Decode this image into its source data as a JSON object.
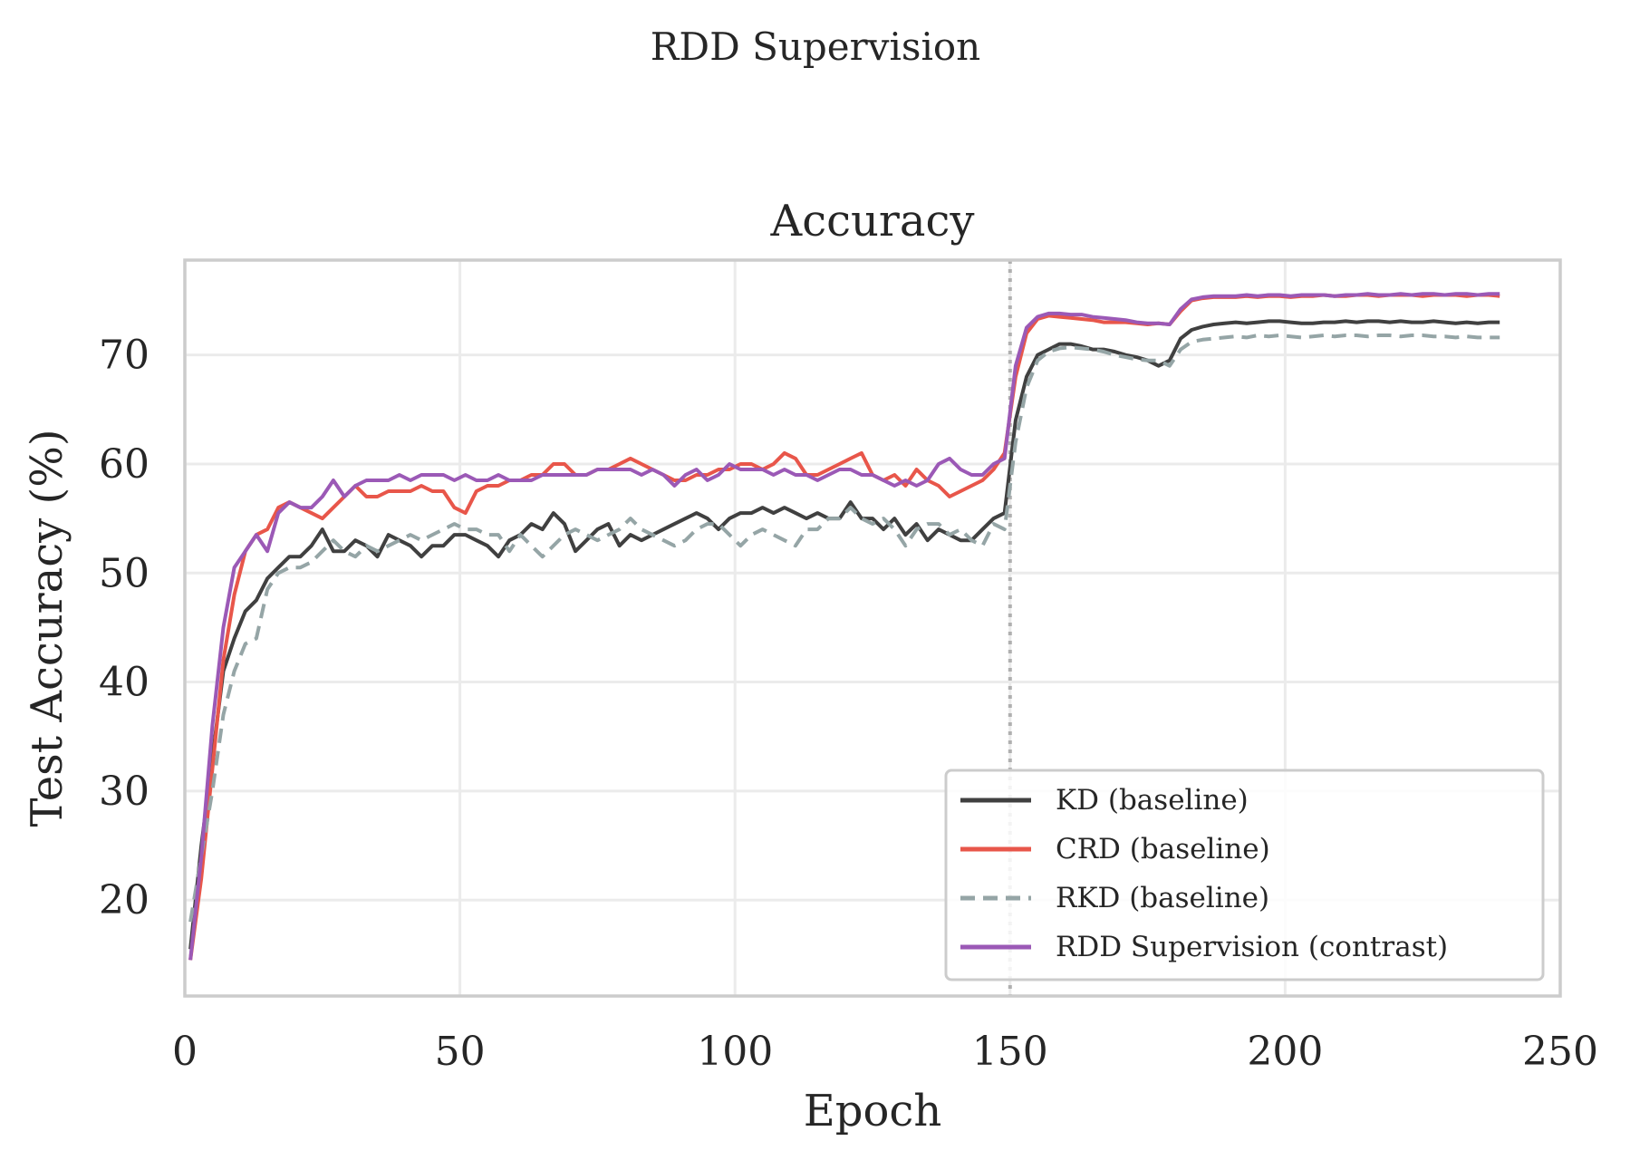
{
  "figure_title": "RDD Supervision",
  "chart_data": {
    "type": "line",
    "title": "Accuracy",
    "xlabel": "Epoch",
    "ylabel": "Test Accuracy (%)",
    "xlim": [
      0,
      250
    ],
    "ylim": [
      11.2,
      78.7
    ],
    "xticks": [
      0,
      50,
      100,
      150,
      200,
      250
    ],
    "yticks": [
      20,
      30,
      40,
      50,
      60,
      70
    ],
    "grid": true,
    "legend_position": "lower-right",
    "vline": {
      "x": 150,
      "style": "dotted",
      "color": "#b0b0b0"
    },
    "x": [
      1,
      3,
      5,
      7,
      9,
      11,
      13,
      15,
      17,
      19,
      21,
      23,
      25,
      27,
      29,
      31,
      33,
      35,
      37,
      39,
      41,
      43,
      45,
      47,
      49,
      51,
      53,
      55,
      57,
      59,
      61,
      63,
      65,
      67,
      69,
      71,
      73,
      75,
      77,
      79,
      81,
      83,
      85,
      87,
      89,
      91,
      93,
      95,
      97,
      99,
      101,
      103,
      105,
      107,
      109,
      111,
      113,
      115,
      117,
      119,
      121,
      123,
      125,
      127,
      129,
      131,
      133,
      135,
      137,
      139,
      141,
      143,
      145,
      147,
      149,
      151,
      153,
      155,
      157,
      159,
      161,
      163,
      165,
      167,
      169,
      171,
      173,
      175,
      177,
      179,
      181,
      183,
      185,
      187,
      189,
      191,
      193,
      195,
      197,
      199,
      201,
      203,
      205,
      207,
      209,
      211,
      213,
      215,
      217,
      219,
      221,
      223,
      225,
      227,
      229,
      231,
      233,
      235,
      237,
      239
    ],
    "series": [
      {
        "name": "KD (baseline)",
        "color": "#404040",
        "dash": "solid",
        "values": [
          15.5,
          25,
          33,
          41,
          44,
          46.5,
          47.5,
          49.5,
          50.5,
          51.5,
          51.5,
          52.5,
          54,
          52,
          52,
          53,
          52.5,
          51.5,
          53.5,
          53,
          52.5,
          51.5,
          52.5,
          52.5,
          53.5,
          53.5,
          53,
          52.5,
          51.5,
          53,
          53.5,
          54.5,
          54,
          55.5,
          54.5,
          52,
          53,
          54,
          54.5,
          52.5,
          53.5,
          53,
          53.5,
          54,
          54.5,
          55,
          55.5,
          55,
          54,
          55,
          55.5,
          55.5,
          56,
          55.5,
          56,
          55.5,
          55,
          55.5,
          55,
          55,
          56.5,
          55,
          55,
          54,
          55,
          53.5,
          54.5,
          53,
          54,
          53.5,
          53,
          53,
          54,
          55,
          55.5,
          64,
          68,
          70,
          70.5,
          71,
          71,
          70.8,
          70.5,
          70.5,
          70.3,
          70,
          69.8,
          69.5,
          69,
          69.5,
          71.5,
          72.3,
          72.6,
          72.8,
          72.9,
          73,
          72.9,
          73,
          73.1,
          73.1,
          73,
          72.9,
          72.9,
          73,
          73,
          73.1,
          73,
          73.1,
          73.1,
          73,
          73.1,
          73,
          73,
          73.1,
          73,
          72.9,
          73,
          72.9,
          73,
          73
        ]
      },
      {
        "name": "CRD (baseline)",
        "color": "#e8564a",
        "dash": "solid",
        "values": [
          14.5,
          22,
          32,
          42,
          48,
          52,
          53.5,
          54,
          56,
          56.5,
          56,
          55.5,
          55,
          56,
          57,
          58,
          57,
          57,
          57.5,
          57.5,
          57.5,
          58,
          57.5,
          57.5,
          56,
          55.5,
          57.5,
          58,
          58,
          58.5,
          58.5,
          59,
          59,
          60,
          60,
          59,
          59,
          59.5,
          59.5,
          60,
          60.5,
          60,
          59.5,
          59,
          58.5,
          58.5,
          59,
          59,
          59.5,
          59.5,
          60,
          60,
          59.5,
          60,
          61,
          60.5,
          59,
          59,
          59.5,
          60,
          60.5,
          61,
          59,
          58.5,
          59,
          58,
          59.5,
          58.5,
          58,
          57,
          57.5,
          58,
          58.5,
          59.5,
          61,
          68,
          72,
          73.3,
          73.6,
          73.5,
          73.4,
          73.3,
          73.2,
          73,
          73,
          73,
          72.9,
          72.8,
          72.9,
          72.8,
          74,
          75,
          75.2,
          75.3,
          75.3,
          75.3,
          75.4,
          75.3,
          75.4,
          75.4,
          75.3,
          75.4,
          75.4,
          75.5,
          75.4,
          75.4,
          75.5,
          75.5,
          75.4,
          75.5,
          75.5,
          75.5,
          75.4,
          75.5,
          75.5,
          75.5,
          75.4,
          75.5,
          75.5,
          75.4
        ]
      },
      {
        "name": "RKD (baseline)",
        "color": "#95a5a6",
        "dash": "dashed",
        "values": [
          18,
          24,
          30,
          37,
          41,
          43.5,
          44,
          48.5,
          50,
          50.5,
          50.5,
          51,
          52,
          53,
          52,
          51.5,
          52.5,
          52,
          52.5,
          53,
          53.5,
          53,
          53.5,
          54,
          54.5,
          54,
          54,
          53.5,
          53.5,
          52,
          53.5,
          52.5,
          51.5,
          52.5,
          53.5,
          54,
          53.5,
          53,
          53.5,
          54,
          55,
          54,
          53.5,
          53,
          52.5,
          53,
          54,
          54.5,
          54.5,
          53.5,
          52.5,
          53.5,
          54,
          53.5,
          53,
          52.5,
          54,
          54,
          55,
          55,
          56,
          55,
          54.5,
          55,
          54,
          52.5,
          54,
          54.5,
          54.5,
          53.5,
          54,
          53,
          52.5,
          54.5,
          54,
          62,
          67,
          69.5,
          70.3,
          70.6,
          70.7,
          70.6,
          70.5,
          70.3,
          70,
          69.8,
          69.6,
          69.5,
          69.5,
          69,
          70.5,
          71.2,
          71.4,
          71.5,
          71.6,
          71.7,
          71.6,
          71.8,
          71.7,
          71.8,
          71.7,
          71.6,
          71.7,
          71.8,
          71.7,
          71.8,
          71.8,
          71.7,
          71.8,
          71.8,
          71.7,
          71.8,
          71.8,
          71.7,
          71.7,
          71.6,
          71.7,
          71.6,
          71.6,
          71.6
        ]
      },
      {
        "name": "RDD Supervision (contrast)",
        "color": "#9b59b6",
        "dash": "solid",
        "values": [
          14.5,
          24,
          36,
          45,
          50.5,
          52,
          53.5,
          52,
          55.5,
          56.5,
          56,
          56,
          57,
          58.5,
          57,
          58,
          58.5,
          58.5,
          58.5,
          59,
          58.5,
          59,
          59,
          59,
          58.5,
          59,
          58.5,
          58.5,
          59,
          58.5,
          58.5,
          58.5,
          59,
          59,
          59,
          59,
          59,
          59.5,
          59.5,
          59.5,
          59.5,
          59,
          59.5,
          59,
          58,
          59,
          59.5,
          58.5,
          59,
          60,
          59.5,
          59.5,
          59.5,
          59,
          59.5,
          59,
          59,
          58.5,
          59,
          59.5,
          59.5,
          59,
          59,
          58.5,
          58,
          58.5,
          58,
          58.5,
          60,
          60.5,
          59.5,
          59,
          59,
          60,
          60.5,
          69,
          72.5,
          73.5,
          73.8,
          73.8,
          73.7,
          73.7,
          73.5,
          73.4,
          73.3,
          73.2,
          73,
          72.9,
          72.9,
          72.8,
          74.2,
          75.1,
          75.3,
          75.4,
          75.4,
          75.4,
          75.5,
          75.4,
          75.5,
          75.5,
          75.4,
          75.5,
          75.5,
          75.5,
          75.4,
          75.5,
          75.5,
          75.6,
          75.5,
          75.5,
          75.6,
          75.5,
          75.6,
          75.6,
          75.5,
          75.6,
          75.6,
          75.5,
          75.6,
          75.6
        ]
      }
    ]
  }
}
